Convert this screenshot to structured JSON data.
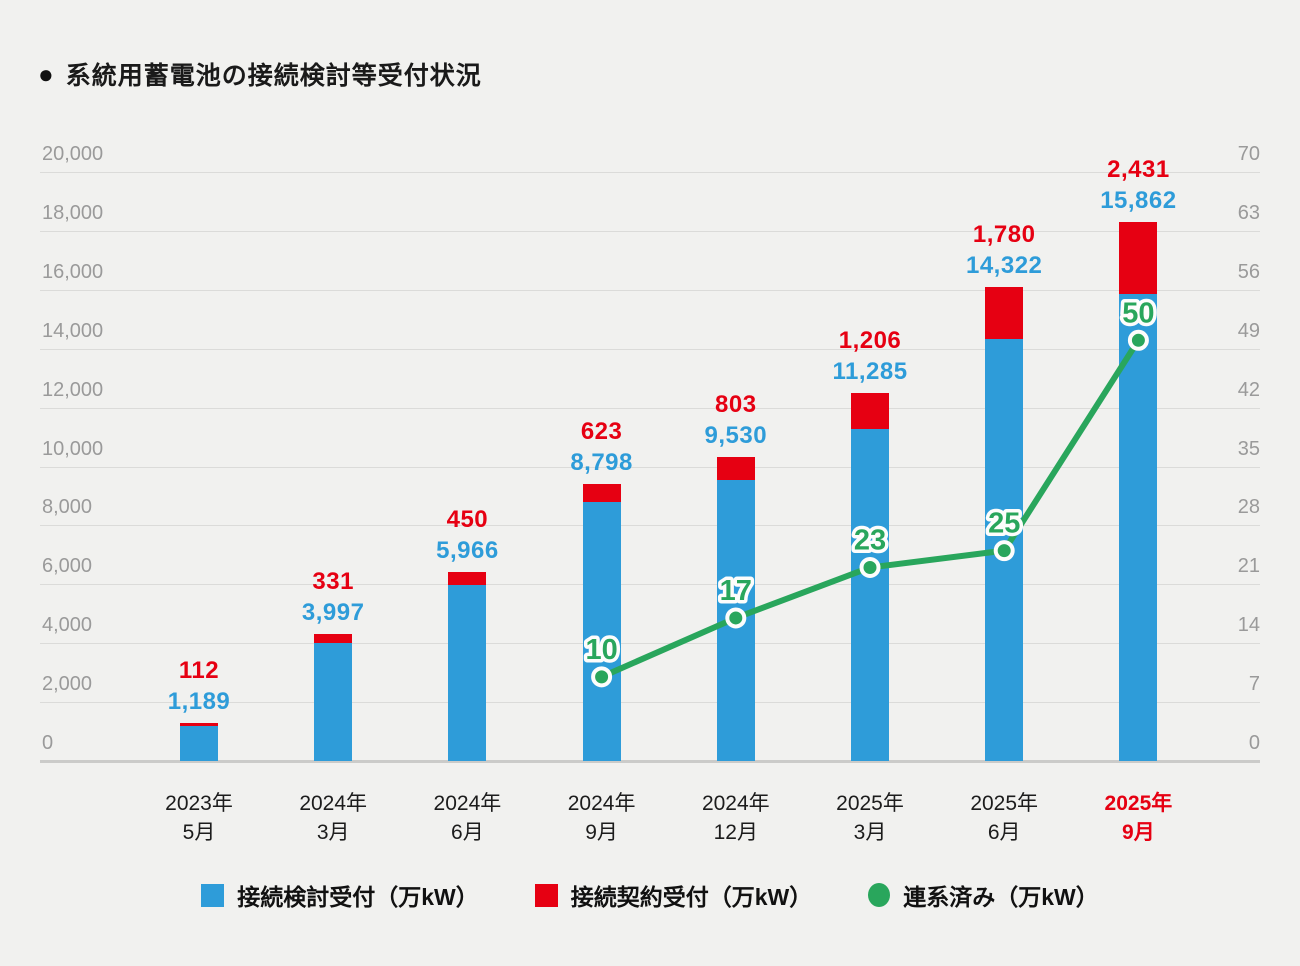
{
  "title": {
    "bullet": "●",
    "text": "系統用蓄電池の接続検討等受付状況"
  },
  "colors": {
    "review_blue": "#2e9cd9",
    "contract_red": "#e60012",
    "connected_green": "#29a65c",
    "axis_gray": "#9a9a9a",
    "grid": "#dbdbd9",
    "baseline": "#cbcbc9",
    "background": "#f1f1ef",
    "text_dark": "#1a1a1a"
  },
  "chart_data": {
    "type": "bar",
    "subtype": "stacked-bar-with-line",
    "categories": [
      {
        "year": "2023年",
        "month": "5月",
        "highlight": false
      },
      {
        "year": "2024年",
        "month": "3月",
        "highlight": false
      },
      {
        "year": "2024年",
        "month": "6月",
        "highlight": false
      },
      {
        "year": "2024年",
        "month": "9月",
        "highlight": false
      },
      {
        "year": "2024年",
        "month": "12月",
        "highlight": false
      },
      {
        "year": "2025年",
        "month": "3月",
        "highlight": false
      },
      {
        "year": "2025年",
        "month": "6月",
        "highlight": false
      },
      {
        "year": "2025年",
        "month": "9月",
        "highlight": true
      }
    ],
    "series": [
      {
        "name": "接続検討受付（万kW）",
        "type": "bar",
        "stack": "a",
        "color": "#2e9cd9",
        "values": [
          1189,
          3997,
          5966,
          8798,
          9530,
          11285,
          14322,
          15862
        ]
      },
      {
        "name": "接続契約受付（万kW）",
        "type": "bar",
        "stack": "a",
        "color": "#e60012",
        "values": [
          112,
          331,
          450,
          623,
          803,
          1206,
          1780,
          2431
        ]
      },
      {
        "name": "連系済み（万kW）",
        "type": "line",
        "axis": "right",
        "color": "#29a65c",
        "values": [
          null,
          null,
          null,
          10,
          17,
          23,
          25,
          50
        ]
      }
    ],
    "left_axis": {
      "min": 0,
      "max": 20000,
      "step": 2000
    },
    "right_axis": {
      "min": 0,
      "max": 70,
      "step": 7
    },
    "grid": true,
    "legend_position": "bottom",
    "title": "系統用蓄電池の接続検討等受付状況"
  },
  "legend": {
    "items": [
      {
        "label": "接続検討受付（万kW）",
        "color": "#2e9cd9",
        "shape": "square"
      },
      {
        "label": "接続契約受付（万kW）",
        "color": "#e60012",
        "shape": "square"
      },
      {
        "label": "連系済み（万kW）",
        "color": "#29a65c",
        "shape": "circle"
      }
    ]
  }
}
